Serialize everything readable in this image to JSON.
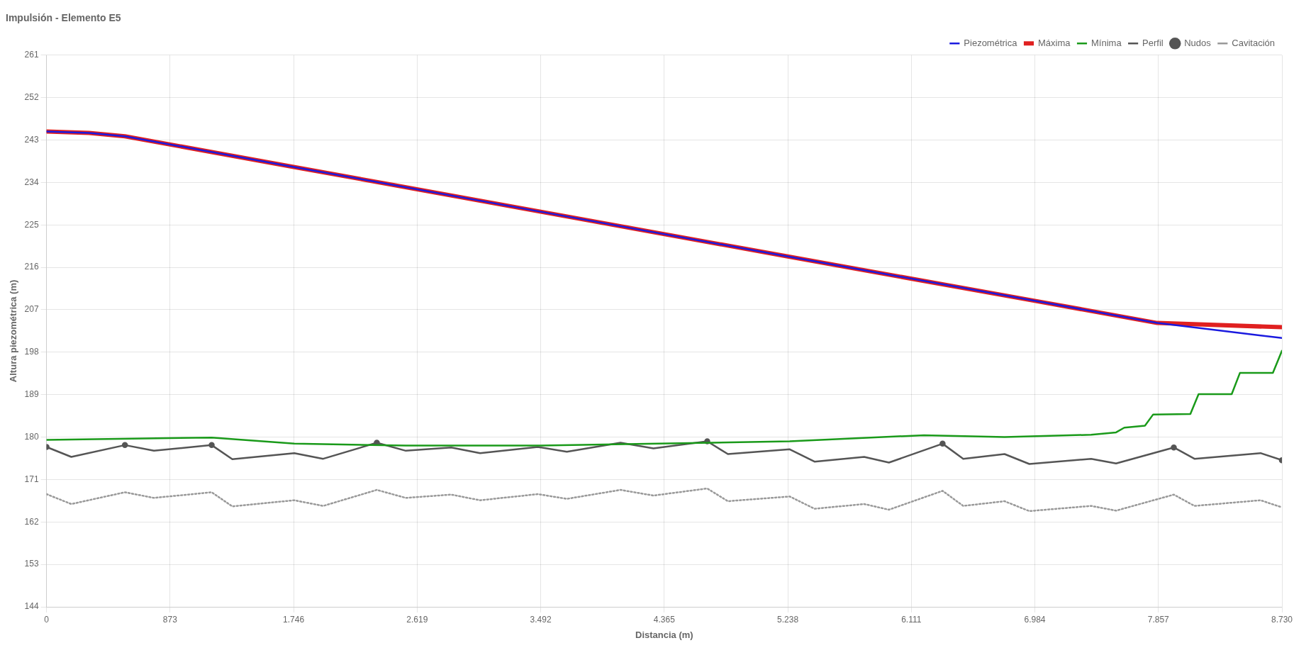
{
  "chart_data": {
    "type": "line",
    "title": "Impulsión - Elemento E5",
    "xlabel": "Distancia (m)",
    "ylabel": "Altura piezométrica (m)",
    "xlim": [
      0,
      8730
    ],
    "xticks": [
      0,
      873,
      {
        "value": 1746,
        "label": "1.746"
      },
      {
        "value": 2619,
        "label": "2.619"
      },
      {
        "value": 3492,
        "label": "3.492"
      },
      {
        "value": 4365,
        "label": "4.365"
      },
      {
        "value": 5238,
        "label": "5.238"
      },
      {
        "value": 6111,
        "label": "6.111"
      },
      {
        "value": 6984,
        "label": "6.984"
      },
      {
        "value": 7857,
        "label": "7.857"
      },
      {
        "value": 8730,
        "label": "8.730"
      }
    ],
    "ylim": [
      144,
      261
    ],
    "yticks": [
      144,
      153,
      162,
      171,
      180,
      189,
      198,
      207,
      216,
      225,
      234,
      243,
      252,
      261
    ],
    "grid": true,
    "legend": "top right",
    "marker": "none",
    "series": [
      {
        "name": "Piezométrica",
        "color": "#1a1adf",
        "x": [
          0,
          300,
          554,
          1746,
          3492,
          5238,
          6984,
          7849,
          8730
        ],
        "values": [
          244.8,
          244.5,
          243.8,
          237.3,
          227.8,
          218.3,
          208.9,
          204.2,
          201.0
        ]
      },
      {
        "name": "Máxima",
        "color": "#e02020",
        "x": [
          0,
          300,
          554,
          1746,
          3492,
          5238,
          6984,
          7849,
          8730
        ],
        "values": [
          244.8,
          244.5,
          243.8,
          237.3,
          227.8,
          218.3,
          208.9,
          204.2,
          203.3
        ]
      },
      {
        "name": "Mínima",
        "color": "#1a9a1a",
        "x": [
          0,
          1167,
          1751,
          2539,
          3472,
          5252,
          6200,
          6770,
          7382,
          7558,
          7616,
          7762,
          7820,
          8083,
          8141,
          8375,
          8433,
          8666,
          8730
        ],
        "values": [
          179.4,
          179.9,
          178.6,
          178.2,
          178.2,
          179.1,
          180.4,
          180.0,
          180.5,
          181.0,
          182.0,
          182.4,
          184.8,
          184.9,
          189.1,
          189.1,
          193.6,
          193.6,
          198.3
        ]
      },
      {
        "name": "Perfil",
        "color": "#555555",
        "x": [
          0,
          175,
          554,
          759,
          1167,
          1313,
          1751,
          1955,
          2334,
          2539,
          2860,
          3064,
          3472,
          3677,
          4056,
          4289,
          4669,
          4815,
          5252,
          5427,
          5778,
          5953,
          6332,
          6478,
          6770,
          6945,
          7382,
          7558,
          7966,
          8112,
          8579,
          8730
        ],
        "values": [
          177.9,
          175.8,
          178.3,
          177.1,
          178.3,
          175.3,
          176.6,
          175.4,
          178.8,
          177.1,
          177.8,
          176.6,
          177.9,
          176.9,
          178.8,
          177.6,
          179.1,
          176.4,
          177.4,
          174.8,
          175.8,
          174.6,
          178.6,
          175.4,
          176.4,
          174.3,
          175.4,
          174.4,
          177.8,
          175.4,
          176.6,
          175.1
        ]
      },
      {
        "name": "Nudos",
        "type": "scatter",
        "marker": "circle",
        "color": "#555555",
        "x": [
          0,
          554,
          1167,
          2334,
          4669,
          6332,
          7966,
          8730
        ],
        "values": [
          177.9,
          178.3,
          178.3,
          178.8,
          179.1,
          178.6,
          177.8,
          175.1
        ]
      },
      {
        "name": "Cavitación",
        "color": "#999999",
        "line_style": "dotted",
        "x": [
          0,
          175,
          554,
          759,
          1167,
          1313,
          1751,
          1955,
          2334,
          2539,
          2860,
          3064,
          3472,
          3677,
          4056,
          4289,
          4669,
          4815,
          5252,
          5427,
          5778,
          5953,
          6332,
          6478,
          6770,
          6945,
          7382,
          7558,
          7966,
          8112,
          8579,
          8730
        ],
        "values": [
          167.9,
          165.8,
          168.3,
          167.1,
          168.3,
          165.3,
          166.6,
          165.4,
          168.8,
          167.1,
          167.8,
          166.6,
          167.9,
          166.9,
          168.8,
          167.6,
          169.1,
          166.4,
          167.4,
          164.8,
          165.8,
          164.6,
          168.6,
          165.4,
          166.4,
          164.3,
          165.4,
          164.4,
          167.8,
          165.4,
          166.6,
          165.1
        ]
      }
    ]
  }
}
